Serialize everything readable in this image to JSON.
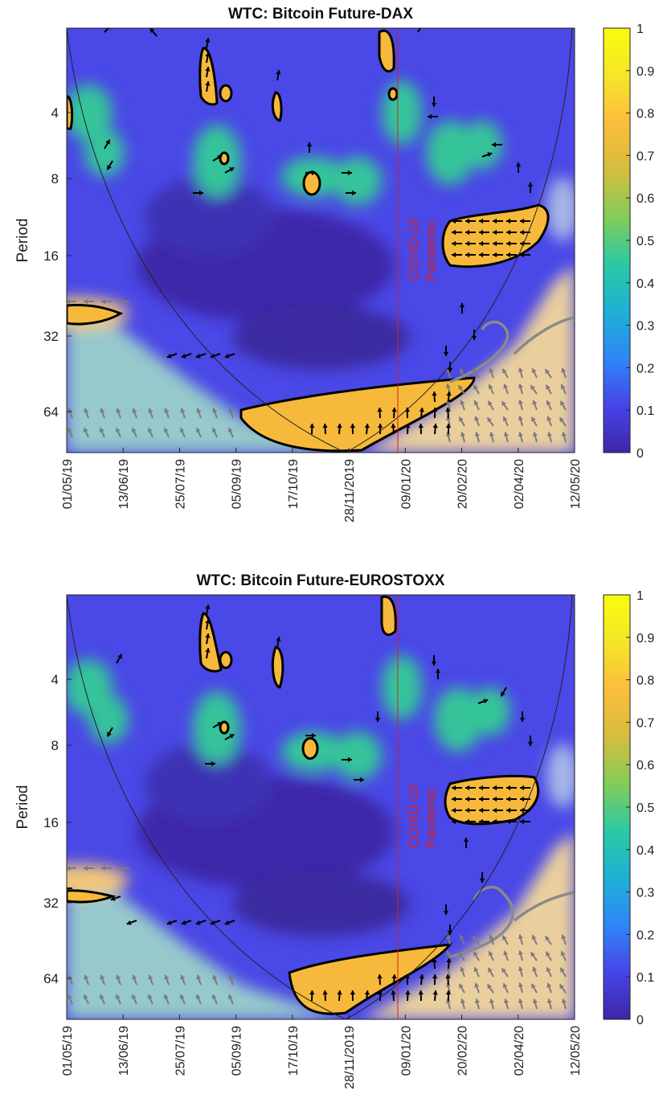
{
  "chart_data": [
    {
      "type": "heatmap",
      "title": "WTC: Bitcoin Future-DAX",
      "ylabel": "Period",
      "xlabel": "",
      "yticks": [
        "4",
        "8",
        "16",
        "32",
        "64"
      ],
      "xticks": [
        "01/05/19",
        "13/06/19",
        "25/07/19",
        "05/09/19",
        "17/10/19",
        "28/11/2019",
        "09/01/20",
        "20/02/20",
        "02/04/20",
        "12/05/20"
      ],
      "colorbar_ticks": [
        "0",
        "0.1",
        "0.2",
        "0.3",
        "0.4",
        "0.5",
        "0.6",
        "0.7",
        "0.8",
        "0.9",
        "1"
      ],
      "colorbar_range": [
        0,
        1
      ],
      "y_scale": "log2",
      "annotation": {
        "text_line1": "COVID-19",
        "text_line2": "Pandemic",
        "color": "#d62020"
      },
      "colormap": [
        "#3e26a8",
        "#4744e8",
        "#2e87f7",
        "#1fb0d5",
        "#2cc9a4",
        "#82cc59",
        "#d6bd3e",
        "#fcbd3c",
        "#f5e629",
        "#f9fb0e"
      ]
    },
    {
      "type": "heatmap",
      "title": "WTC: Bitcoin Future-EUROSTOXX",
      "ylabel": "Period",
      "xlabel": "",
      "yticks": [
        "4",
        "8",
        "16",
        "32",
        "64"
      ],
      "xticks": [
        "01/05/19",
        "13/06/19",
        "25/07/19",
        "05/09/19",
        "17/10/19",
        "28/11/2019",
        "09/01/20",
        "20/02/20",
        "02/04/20",
        "12/05/20"
      ],
      "colorbar_ticks": [
        "0",
        "0.1",
        "0.2",
        "0.3",
        "0.4",
        "0.5",
        "0.6",
        "0.7",
        "0.8",
        "0.9",
        "1"
      ],
      "colorbar_range": [
        0,
        1
      ],
      "y_scale": "log2",
      "annotation": {
        "text_line1": "COVID-19",
        "text_line2": "Pandemic",
        "color": "#d62020"
      },
      "colormap": [
        "#3e26a8",
        "#4744e8",
        "#2e87f7",
        "#1fb0d5",
        "#2cc9a4",
        "#82cc59",
        "#d6bd3e",
        "#fcbd3c",
        "#f5e629",
        "#f9fb0e"
      ]
    }
  ]
}
